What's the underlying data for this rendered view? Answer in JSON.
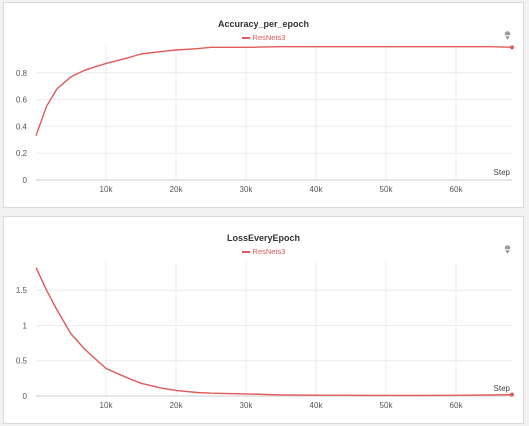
{
  "chart_data": [
    {
      "type": "line",
      "title": "Accuracy_per_epoch",
      "xlabel": "Step",
      "ylabel": "",
      "xlim": [
        0,
        68000
      ],
      "ylim": [
        0,
        1.0
      ],
      "x_ticks": [
        10000,
        20000,
        30000,
        40000,
        50000,
        60000
      ],
      "x_tick_labels": [
        "10k",
        "20k",
        "30k",
        "40k",
        "50k",
        "60k"
      ],
      "y_ticks": [
        0,
        0.2,
        0.4,
        0.6,
        0.8
      ],
      "y_tick_labels": [
        "0",
        "0.2",
        "0.4",
        "0.6",
        "0.8"
      ],
      "grid": true,
      "legend": "top-center",
      "series": [
        {
          "name": "ResNets3",
          "color": "#e05a5a",
          "x": [
            0,
            1500,
            3000,
            5000,
            7000,
            10000,
            13000,
            15000,
            18000,
            20000,
            23000,
            25000,
            30000,
            35000,
            40000,
            45000,
            50000,
            55000,
            60000,
            65000,
            68000
          ],
          "y": [
            0.33,
            0.55,
            0.68,
            0.77,
            0.82,
            0.87,
            0.91,
            0.94,
            0.96,
            0.97,
            0.98,
            0.99,
            0.99,
            0.995,
            0.995,
            0.995,
            0.995,
            0.995,
            0.995,
            0.995,
            0.99
          ]
        }
      ]
    },
    {
      "type": "line",
      "title": "LossEveryEpoch",
      "xlabel": "Step",
      "ylabel": "",
      "xlim": [
        0,
        68000
      ],
      "ylim": [
        0,
        1.9
      ],
      "x_ticks": [
        10000,
        20000,
        30000,
        40000,
        50000,
        60000
      ],
      "x_tick_labels": [
        "10k",
        "20k",
        "30k",
        "40k",
        "50k",
        "60k"
      ],
      "y_ticks": [
        0,
        0.5,
        1.0,
        1.5
      ],
      "y_tick_labels": [
        "0",
        "0.5",
        "1",
        "1.5"
      ],
      "grid": true,
      "legend": "top-center",
      "series": [
        {
          "name": "ResNets3",
          "color": "#e05a5a",
          "x": [
            0,
            1500,
            3000,
            5000,
            7000,
            10000,
            13000,
            15000,
            18000,
            20000,
            23000,
            25000,
            30000,
            35000,
            40000,
            45000,
            50000,
            55000,
            60000,
            65000,
            68000
          ],
          "y": [
            1.82,
            1.5,
            1.22,
            0.88,
            0.66,
            0.39,
            0.26,
            0.18,
            0.11,
            0.08,
            0.05,
            0.04,
            0.03,
            0.015,
            0.012,
            0.01,
            0.008,
            0.008,
            0.01,
            0.015,
            0.02
          ]
        }
      ]
    }
  ],
  "icons": {
    "panel_tool": "pin-icon"
  }
}
